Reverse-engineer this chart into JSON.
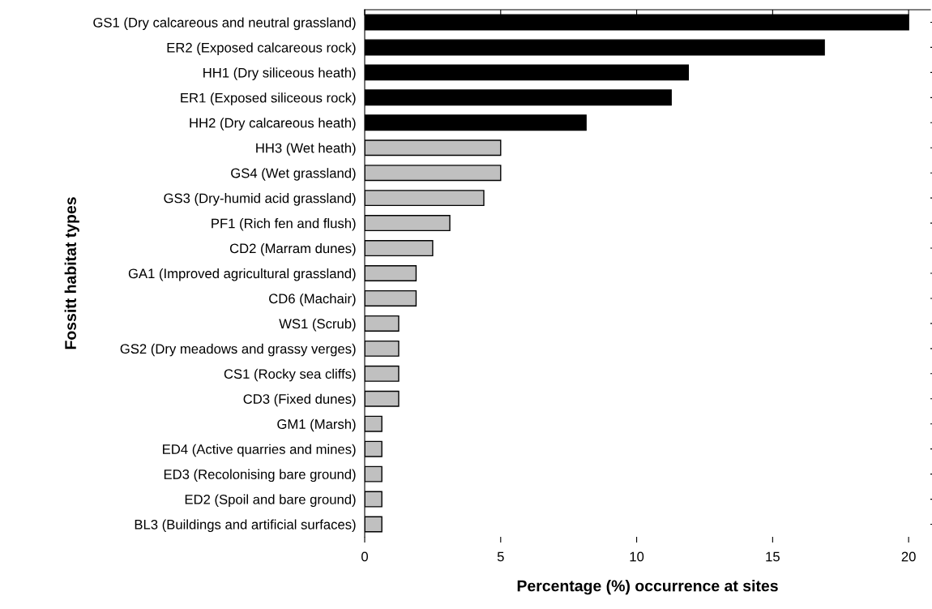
{
  "chart_data": {
    "type": "bar",
    "orientation": "horizontal",
    "categories": [
      "GS1 (Dry calcareous and neutral grassland)",
      "ER2 (Exposed calcareous rock)",
      "HH1 (Dry siliceous heath)",
      "ER1 (Exposed siliceous rock)",
      "HH2 (Dry calcareous heath)",
      "HH3 (Wet heath)",
      "GS4 (Wet grassland)",
      "GS3 (Dry-humid acid grassland)",
      "PF1 (Rich fen and flush)",
      "CD2 (Marram dunes)",
      "GA1 (Improved agricultural grassland)",
      "CD6 (Machair)",
      "WS1 (Scrub)",
      "GS2 (Dry meadows and grassy verges)",
      "CS1 (Rocky sea cliffs)",
      "CD3 (Fixed dunes)",
      "GM1 (Marsh)",
      "ED4 (Active quarries and mines)",
      "ED3 (Recolonising bare ground)",
      "ED2 (Spoil and bare ground)",
      "BL3 (Buildings and artificial surfaces)"
    ],
    "values": [
      20,
      16.9,
      11.9,
      11.27,
      8.14,
      5,
      5,
      4.38,
      3.13,
      2.5,
      1.89,
      1.89,
      1.25,
      1.25,
      1.25,
      1.25,
      0.63,
      0.63,
      0.63,
      0.63,
      0.63
    ],
    "colors": [
      "#000000",
      "#000000",
      "#000000",
      "#000000",
      "#000000",
      "#c0c0c0",
      "#c0c0c0",
      "#c0c0c0",
      "#c0c0c0",
      "#c0c0c0",
      "#c0c0c0",
      "#c0c0c0",
      "#c0c0c0",
      "#c0c0c0",
      "#c0c0c0",
      "#c0c0c0",
      "#c0c0c0",
      "#c0c0c0",
      "#c0c0c0",
      "#c0c0c0",
      "#c0c0c0"
    ],
    "xlim": [
      0,
      20.8
    ],
    "xticks": [
      0,
      5,
      10,
      15,
      20
    ],
    "xlabel": "Percentage (%) occurrence at sites",
    "ylabel": "Fossitt habitat types",
    "grid": false
  }
}
